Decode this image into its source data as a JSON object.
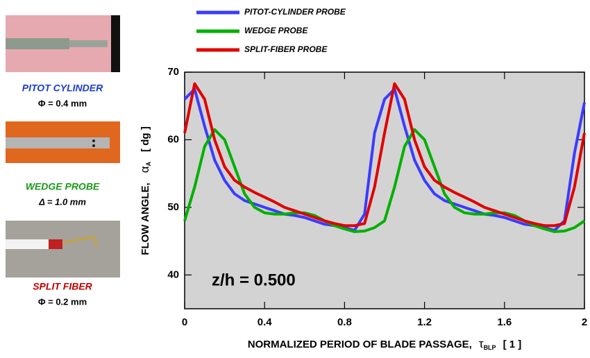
{
  "chart_data": {
    "type": "line",
    "legend": "top",
    "xlabel": {
      "text": "NORMALIZED PERIOD OF BLADE PASSAGE,",
      "symbol": "τ",
      "sub": "BLP",
      "unit": "[ 1 ]"
    },
    "ylabel": {
      "text": "FLOW ANGLE,",
      "symbol": "α",
      "sub": "A",
      "unit": "[ dg ]"
    },
    "annotation": "z/h = 0.500",
    "xlim": [
      0,
      2
    ],
    "ylim": [
      35,
      70
    ],
    "xticks": [
      0,
      0.4,
      0.8,
      1.2,
      1.6,
      2
    ],
    "yticks": [
      40,
      50,
      60,
      70
    ],
    "x": [
      0,
      0.05,
      0.1,
      0.15,
      0.2,
      0.25,
      0.3,
      0.35,
      0.4,
      0.45,
      0.5,
      0.55,
      0.6,
      0.65,
      0.7,
      0.75,
      0.8,
      0.85,
      0.9,
      0.95,
      1,
      1.05,
      1.1,
      1.15,
      1.2,
      1.25,
      1.3,
      1.35,
      1.4,
      1.45,
      1.5,
      1.55,
      1.6,
      1.65,
      1.7,
      1.75,
      1.8,
      1.85,
      1.9,
      1.95,
      2
    ],
    "series": [
      {
        "name": "PITOT-CYLINDER PROBE",
        "color": "#3b3bff",
        "values": [
          66,
          67.5,
          62,
          57,
          54,
          52,
          51,
          50.5,
          50,
          49.5,
          49,
          48.8,
          48.5,
          48,
          47.5,
          47.3,
          47,
          46.6,
          49,
          61,
          66,
          67.5,
          62,
          57,
          54,
          52,
          51,
          50.5,
          50,
          49.5,
          49,
          48.8,
          48.5,
          48,
          47.5,
          47.3,
          47,
          46.6,
          48,
          58,
          65.5
        ]
      },
      {
        "name": "WEDGE PROBE",
        "color": "#00b000",
        "values": [
          48,
          53,
          59,
          61.5,
          60,
          56,
          52,
          50,
          49.2,
          49,
          49,
          49.2,
          49.2,
          48.8,
          48,
          47.3,
          46.8,
          46.4,
          46.5,
          47,
          48,
          53,
          59,
          61.5,
          60,
          56,
          52,
          50,
          49.2,
          49,
          49,
          49.2,
          49.2,
          48.8,
          48,
          47.3,
          46.8,
          46.4,
          46.5,
          47,
          48
        ]
      },
      {
        "name": "SPLIT-FIBER PROBE",
        "color": "#e00000",
        "values": [
          61,
          68.3,
          66,
          60,
          56,
          54,
          53,
          52.2,
          51.5,
          50.8,
          50,
          49.5,
          49,
          48.5,
          48,
          47.6,
          47.3,
          47.3,
          47.6,
          53,
          61,
          68.3,
          66,
          60,
          56,
          54,
          53,
          52.2,
          51.5,
          50.8,
          50,
          49.5,
          49,
          48.5,
          48,
          47.6,
          47.3,
          47.3,
          47.6,
          53,
          61
        ]
      }
    ],
    "probes": [
      {
        "name": "PITOT CYLINDER",
        "size": "Φ = 0.4 mm",
        "color": "#1a3ccc"
      },
      {
        "name": "WEDGE  PROBE",
        "size": "Δ = 1.0 mm",
        "color": "#1a9a1a"
      },
      {
        "name": "SPLIT  FIBER",
        "size": "Φ = 0.2 mm",
        "color": "#c00000"
      }
    ]
  }
}
